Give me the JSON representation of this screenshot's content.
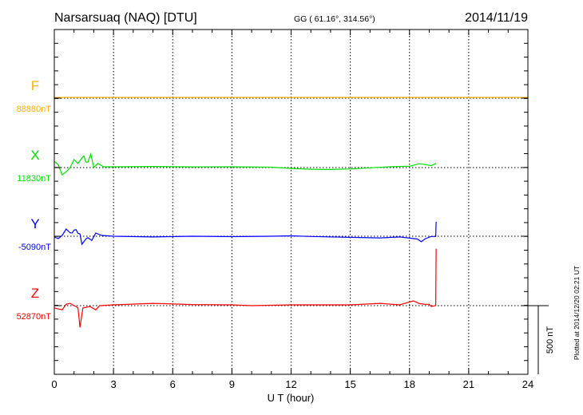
{
  "chart_data": {
    "type": "line",
    "title": "Narsarsuaq (NAQ)  [DTU]",
    "coords": "GG ( 61.16°, 314.56°)",
    "date": "2014/11/19",
    "xlabel": "U T (hour)",
    "xlim": [
      0,
      24
    ],
    "xticks": [
      "0",
      "3",
      "6",
      "9",
      "12",
      "15",
      "18",
      "21",
      "24"
    ],
    "scale_bar_label": "500 nT",
    "scale_bar_nT": 500,
    "plotted_at": "Plotted at 2014/12/20 02:21 UT",
    "grid": "dotted",
    "series": [
      {
        "name": "F",
        "baseline_label": "88880nT",
        "color": "#ffb000",
        "points": [
          [
            0,
            5
          ],
          [
            24,
            5
          ]
        ]
      },
      {
        "name": "X",
        "baseline_label": "11830nT",
        "color": "#00e000",
        "points": [
          [
            0,
            46
          ],
          [
            0.2,
            20
          ],
          [
            0.4,
            -52
          ],
          [
            0.6,
            -30
          ],
          [
            0.8,
            0
          ],
          [
            1.0,
            58
          ],
          [
            1.2,
            30
          ],
          [
            1.4,
            70
          ],
          [
            1.5,
            85
          ],
          [
            1.6,
            40
          ],
          [
            1.7,
            40
          ],
          [
            1.85,
            99
          ],
          [
            2.0,
            0
          ],
          [
            2.2,
            30
          ],
          [
            2.5,
            6
          ],
          [
            3,
            6
          ],
          [
            5,
            8
          ],
          [
            7,
            5
          ],
          [
            9,
            6
          ],
          [
            11,
            3
          ],
          [
            12,
            -6
          ],
          [
            13,
            -12
          ],
          [
            14,
            -14
          ],
          [
            15,
            -10
          ],
          [
            16,
            -2
          ],
          [
            17,
            6
          ],
          [
            18,
            10
          ],
          [
            18.5,
            28
          ],
          [
            18.8,
            22
          ],
          [
            19.1,
            14
          ],
          [
            19.35,
            30
          ]
        ]
      },
      {
        "name": "Y",
        "baseline_label": "-5090nT",
        "color": "#0000ff",
        "points": [
          [
            0,
            -6
          ],
          [
            0.2,
            -17
          ],
          [
            0.4,
            6
          ],
          [
            0.6,
            52
          ],
          [
            0.8,
            25
          ],
          [
            0.9,
            23
          ],
          [
            1.0,
            44
          ],
          [
            1.1,
            48
          ],
          [
            1.2,
            20
          ],
          [
            1.3,
            17
          ],
          [
            1.4,
            -58
          ],
          [
            1.6,
            -20
          ],
          [
            1.7,
            -10
          ],
          [
            1.9,
            -30
          ],
          [
            2.1,
            23
          ],
          [
            2.4,
            6
          ],
          [
            3,
            0
          ],
          [
            5,
            -5
          ],
          [
            7,
            0
          ],
          [
            9,
            -3
          ],
          [
            11,
            0
          ],
          [
            12,
            3
          ],
          [
            13,
            -2
          ],
          [
            15,
            -8
          ],
          [
            16.5,
            -12
          ],
          [
            17.5,
            -5
          ],
          [
            18.4,
            -20
          ],
          [
            18.6,
            -40
          ],
          [
            18.8,
            -18
          ],
          [
            19.1,
            -2
          ],
          [
            19.33,
            -2
          ],
          [
            19.35,
            105
          ]
        ]
      },
      {
        "name": "Z",
        "baseline_label": "52870nT",
        "color": "#ff0000",
        "points": [
          [
            0,
            -17
          ],
          [
            0.4,
            -30
          ],
          [
            0.6,
            10
          ],
          [
            0.8,
            17
          ],
          [
            1.0,
            0
          ],
          [
            1.1,
            -6
          ],
          [
            1.2,
            -17
          ],
          [
            1.3,
            -157
          ],
          [
            1.45,
            -17
          ],
          [
            1.8,
            -6
          ],
          [
            2.1,
            -30
          ],
          [
            2.3,
            0
          ],
          [
            3,
            6
          ],
          [
            5,
            17
          ],
          [
            7,
            8
          ],
          [
            9,
            6
          ],
          [
            10,
            0
          ],
          [
            12,
            6
          ],
          [
            14,
            6
          ],
          [
            15,
            6
          ],
          [
            16.5,
            17
          ],
          [
            17.5,
            6
          ],
          [
            18.2,
            35
          ],
          [
            18.5,
            15
          ],
          [
            18.8,
            10
          ],
          [
            19.0,
            10
          ],
          [
            19.1,
            -6
          ],
          [
            19.33,
            0
          ],
          [
            19.35,
            413
          ]
        ]
      }
    ]
  }
}
